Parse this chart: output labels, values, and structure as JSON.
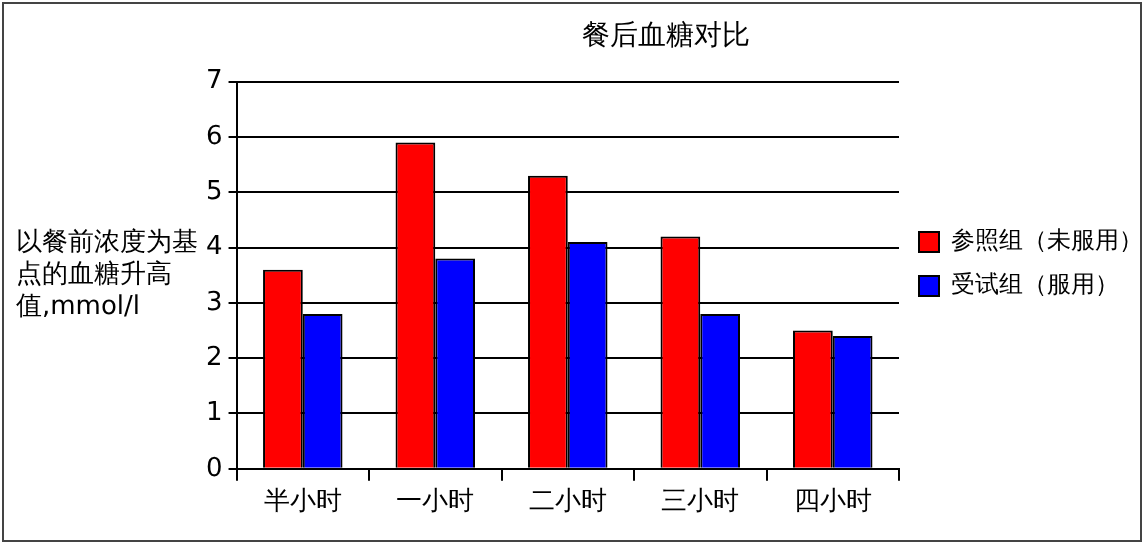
{
  "chart_data": {
    "type": "bar",
    "title": "餐后血糖对比",
    "ylabel": "以餐前浓度为基点的血糖升高值,mmol/l",
    "categories": [
      "半小时",
      "一小时",
      "二小时",
      "三小时",
      "四小时"
    ],
    "series": [
      {
        "name": "参照组（未服用）",
        "color": "#ff0000",
        "values": [
          3.6,
          5.9,
          5.3,
          4.2,
          2.5
        ]
      },
      {
        "name": "受试组（服用）",
        "color": "#0000ff",
        "values": [
          2.8,
          3.8,
          4.1,
          2.8,
          2.4
        ]
      }
    ],
    "ylim": [
      0,
      7
    ],
    "yticks": [
      0,
      1,
      2,
      3,
      4,
      5,
      6,
      7
    ],
    "grid": "y",
    "legend": "right"
  }
}
